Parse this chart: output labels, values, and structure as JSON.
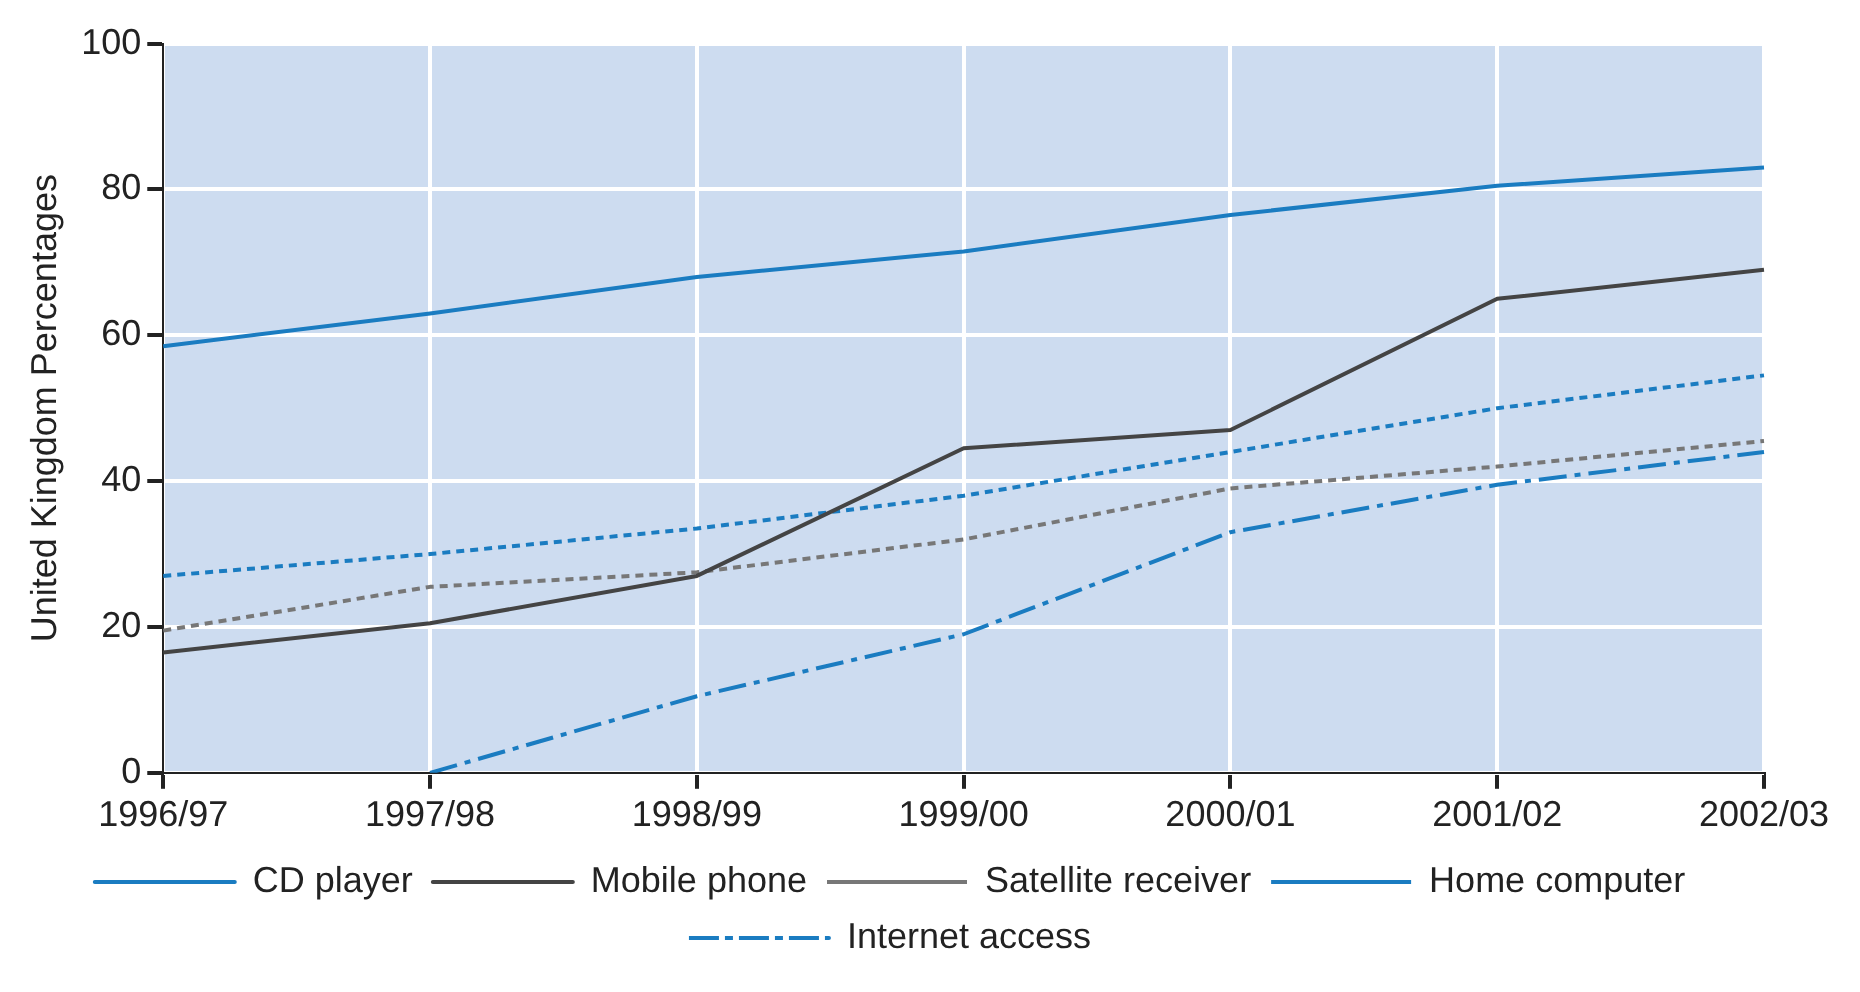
{
  "chart_data": {
    "type": "line",
    "ylabel": "United Kingdom Percentages",
    "categories": [
      "1996/97",
      "1997/98",
      "1998/99",
      "1999/00",
      "2000/01",
      "2001/02",
      "2002/03"
    ],
    "series": [
      {
        "name": "CD player",
        "color": "#1a7cc1",
        "line_style": "solid",
        "values": [
          58.5,
          63,
          68,
          71.5,
          76.5,
          80.5,
          83
        ]
      },
      {
        "name": "Mobile phone",
        "color": "#444444",
        "line_style": "solid",
        "values": [
          16.5,
          20.5,
          27,
          44.5,
          47,
          65,
          69
        ]
      },
      {
        "name": "Satellite receiver",
        "color": "#777777",
        "line_style": "dotted",
        "values": [
          19.5,
          25.5,
          27.5,
          32,
          39,
          42,
          45.5
        ]
      },
      {
        "name": "Home computer",
        "color": "#1a7cc1",
        "line_style": "dotted",
        "values": [
          27,
          30,
          33.5,
          38,
          44,
          50,
          54.5
        ]
      },
      {
        "name": "Internet access",
        "color": "#1a7cc1",
        "line_style": "dashed",
        "values": [
          null,
          0,
          10.5,
          19,
          33,
          39.5,
          44
        ]
      }
    ],
    "ylim": [
      0,
      100
    ],
    "yticks": [
      0,
      20,
      40,
      60,
      80,
      100
    ],
    "grid": true,
    "legend": "bottom",
    "marker": "none"
  }
}
